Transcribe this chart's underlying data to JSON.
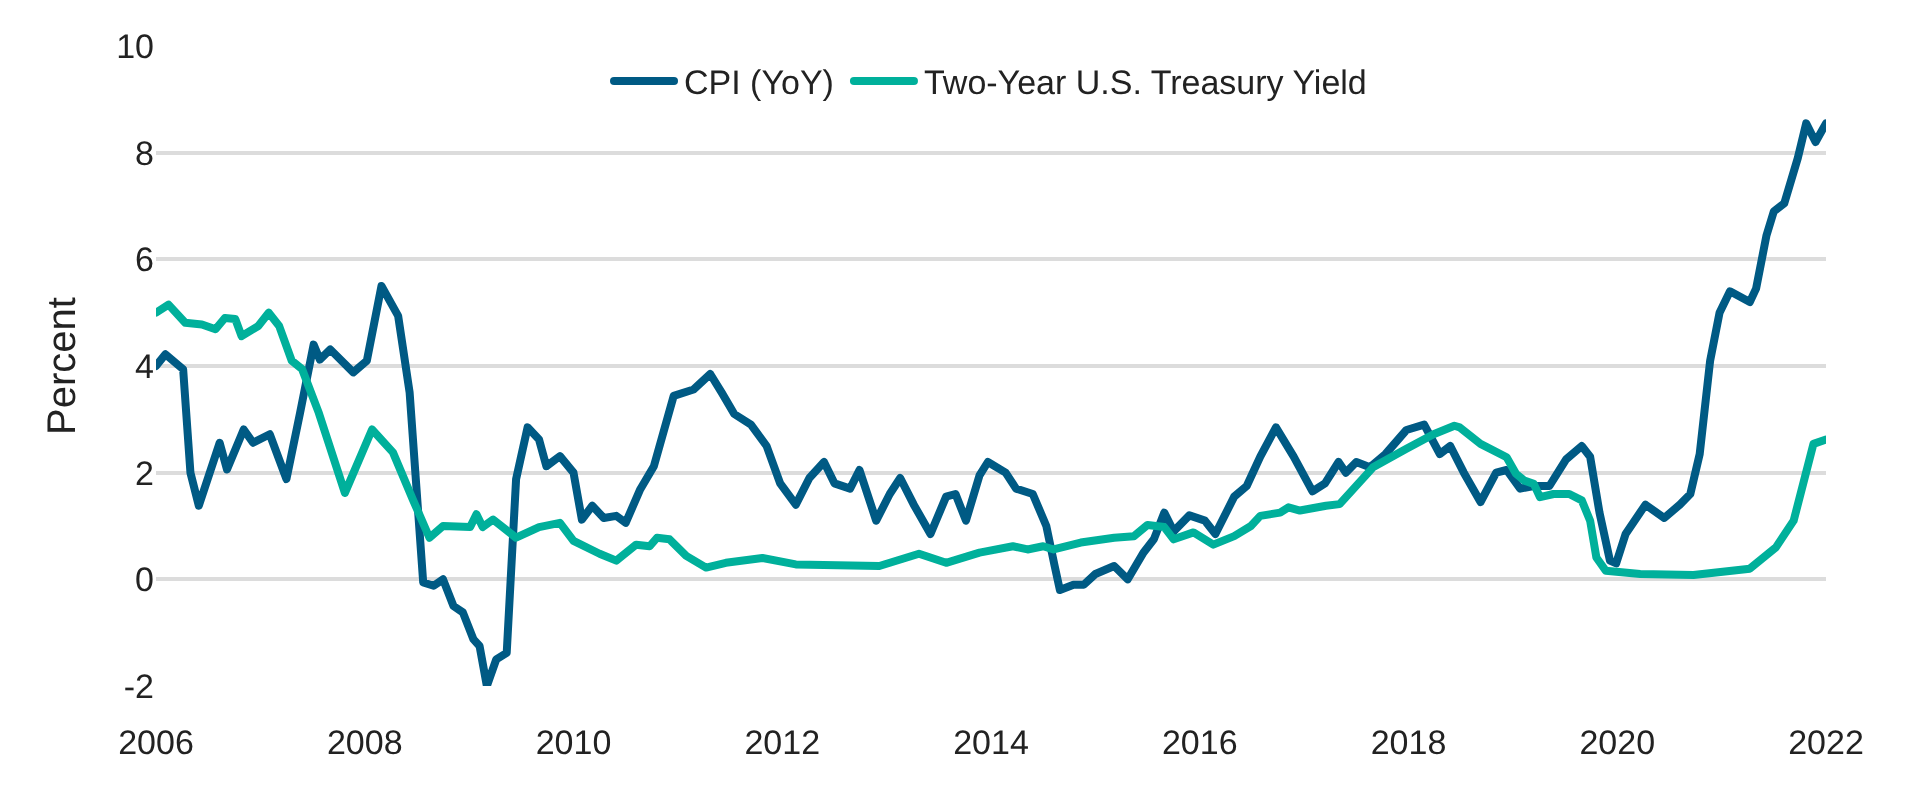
{
  "chart_data": {
    "type": "line",
    "ylabel": "Percent",
    "xlim": [
      2006,
      2022
    ],
    "xticks": [
      2006,
      2008,
      2010,
      2012,
      2014,
      2016,
      2018,
      2020,
      2022
    ],
    "ylim": [
      -2,
      10
    ],
    "yticks": [
      -2,
      0,
      2,
      4,
      6,
      8,
      10
    ],
    "grid": "y",
    "legend": "top",
    "marker": "none",
    "line_style": "solid",
    "series": [
      {
        "name": "CPI (YoY)",
        "color": "#005a84",
        "x": [
          2006.0,
          2006.09,
          2006.26,
          2006.33,
          2006.41,
          2006.61,
          2006.68,
          2006.84,
          2006.93,
          2007.09,
          2007.25,
          2007.38,
          2007.51,
          2007.57,
          2007.67,
          2007.89,
          2008.02,
          2008.16,
          2008.32,
          2008.43,
          2008.56,
          2008.66,
          2008.75,
          2008.85,
          2008.94,
          2009.04,
          2009.1,
          2009.17,
          2009.26,
          2009.36,
          2009.45,
          2009.56,
          2009.67,
          2009.74,
          2009.87,
          2010.0,
          2010.08,
          2010.18,
          2010.29,
          2010.41,
          2010.5,
          2010.64,
          2010.77,
          2010.96,
          2011.15,
          2011.31,
          2011.42,
          2011.54,
          2011.7,
          2011.85,
          2011.98,
          2012.13,
          2012.26,
          2012.4,
          2012.5,
          2012.65,
          2012.74,
          2012.9,
          2013.03,
          2013.13,
          2013.26,
          2013.42,
          2013.57,
          2013.66,
          2013.76,
          2013.89,
          2013.97,
          2014.14,
          2014.24,
          2014.4,
          2014.53,
          2014.61,
          2014.66,
          2014.79,
          2014.89,
          2015.0,
          2015.18,
          2015.31,
          2015.46,
          2015.56,
          2015.66,
          2015.75,
          2015.9,
          2016.05,
          2016.15,
          2016.33,
          2016.45,
          2016.58,
          2016.73,
          2016.9,
          2017.08,
          2017.2,
          2017.33,
          2017.4,
          2017.5,
          2017.63,
          2017.78,
          2017.98,
          2018.15,
          2018.3,
          2018.4,
          2018.53,
          2018.69,
          2018.84,
          2018.94,
          2019.07,
          2019.2,
          2019.35,
          2019.51,
          2019.66,
          2019.74,
          2019.83,
          2019.93,
          2019.99,
          2020.08,
          2020.27,
          2020.45,
          2020.6,
          2020.7,
          2020.79,
          2020.89,
          2020.98,
          2021.08,
          2021.27,
          2021.33,
          2021.43,
          2021.5,
          2021.6,
          2021.73,
          2021.81,
          2021.9,
          2022.0
        ],
        "values": [
          4.0,
          4.22,
          3.94,
          2.0,
          1.38,
          2.56,
          2.06,
          2.81,
          2.56,
          2.72,
          1.88,
          3.12,
          4.4,
          4.12,
          4.31,
          3.88,
          4.1,
          5.5,
          4.94,
          3.5,
          -0.06,
          -0.12,
          0.0,
          -0.5,
          -0.62,
          -1.12,
          -1.25,
          -2.0,
          -1.5,
          -1.38,
          1.88,
          2.85,
          2.62,
          2.12,
          2.31,
          2.0,
          1.12,
          1.38,
          1.15,
          1.19,
          1.06,
          1.69,
          2.12,
          3.44,
          3.56,
          3.85,
          3.5,
          3.1,
          2.9,
          2.5,
          1.8,
          1.4,
          1.9,
          2.2,
          1.8,
          1.7,
          2.05,
          1.1,
          1.6,
          1.9,
          1.4,
          0.85,
          1.55,
          1.6,
          1.1,
          1.95,
          2.2,
          2.0,
          1.7,
          1.6,
          1.0,
          0.25,
          -0.2,
          -0.1,
          -0.1,
          0.1,
          0.25,
          0.0,
          0.5,
          0.75,
          1.25,
          0.9,
          1.2,
          1.1,
          0.85,
          1.55,
          1.75,
          2.3,
          2.85,
          2.3,
          1.65,
          1.8,
          2.2,
          2.0,
          2.2,
          2.1,
          2.35,
          2.8,
          2.9,
          2.35,
          2.5,
          2.0,
          1.45,
          2.0,
          2.05,
          1.7,
          1.75,
          1.75,
          2.25,
          2.5,
          2.3,
          1.25,
          0.35,
          0.3,
          0.85,
          1.4,
          1.15,
          1.4,
          1.6,
          2.35,
          4.1,
          5.0,
          5.4,
          5.2,
          5.45,
          6.45,
          6.9,
          7.05,
          7.9,
          8.55,
          8.2,
          8.55
        ]
      },
      {
        "name": "Two-Year U.S. Treasury Yield",
        "color": "#00b09b",
        "x": [
          2006.0,
          2006.12,
          2006.28,
          2006.44,
          2006.57,
          2006.66,
          2006.76,
          2006.82,
          2006.98,
          2007.08,
          2007.18,
          2007.3,
          2007.4,
          2007.56,
          2007.81,
          2008.07,
          2008.27,
          2008.46,
          2008.62,
          2008.75,
          2009.01,
          2009.07,
          2009.13,
          2009.23,
          2009.45,
          2009.67,
          2009.87,
          2010.0,
          2010.25,
          2010.41,
          2010.6,
          2010.73,
          2010.8,
          2010.92,
          2011.08,
          2011.27,
          2011.46,
          2011.81,
          2012.13,
          2012.93,
          2013.31,
          2013.57,
          2013.89,
          2014.21,
          2014.35,
          2014.5,
          2014.6,
          2014.86,
          2015.18,
          2015.37,
          2015.5,
          2015.66,
          2015.75,
          2015.94,
          2016.13,
          2016.33,
          2016.49,
          2016.58,
          2016.77,
          2016.85,
          2016.96,
          2017.21,
          2017.34,
          2017.66,
          2017.98,
          2018.24,
          2018.44,
          2018.49,
          2018.69,
          2018.94,
          2019.03,
          2019.11,
          2019.2,
          2019.26,
          2019.39,
          2019.54,
          2019.66,
          2019.74,
          2019.8,
          2019.89,
          2020.22,
          2020.73,
          2021.27,
          2021.52,
          2021.69,
          2021.88,
          2022.0
        ],
        "values": [
          5.0,
          5.15,
          4.81,
          4.78,
          4.69,
          4.9,
          4.88,
          4.56,
          4.75,
          5.0,
          4.75,
          4.1,
          3.94,
          3.12,
          1.62,
          2.81,
          2.38,
          1.5,
          0.78,
          1.0,
          0.98,
          1.22,
          0.98,
          1.12,
          0.78,
          0.98,
          1.06,
          0.72,
          0.48,
          0.35,
          0.65,
          0.62,
          0.78,
          0.75,
          0.44,
          0.22,
          0.31,
          0.4,
          0.28,
          0.25,
          0.48,
          0.31,
          0.5,
          0.62,
          0.56,
          0.62,
          0.56,
          0.69,
          0.78,
          0.81,
          1.02,
          0.98,
          0.75,
          0.88,
          0.65,
          0.81,
          1.0,
          1.19,
          1.25,
          1.35,
          1.29,
          1.38,
          1.41,
          2.1,
          2.45,
          2.72,
          2.88,
          2.85,
          2.54,
          2.29,
          1.98,
          1.85,
          1.79,
          1.54,
          1.6,
          1.6,
          1.48,
          1.1,
          0.41,
          0.16,
          0.1,
          0.08,
          0.2,
          0.6,
          1.1,
          2.54,
          2.62
        ]
      }
    ]
  }
}
